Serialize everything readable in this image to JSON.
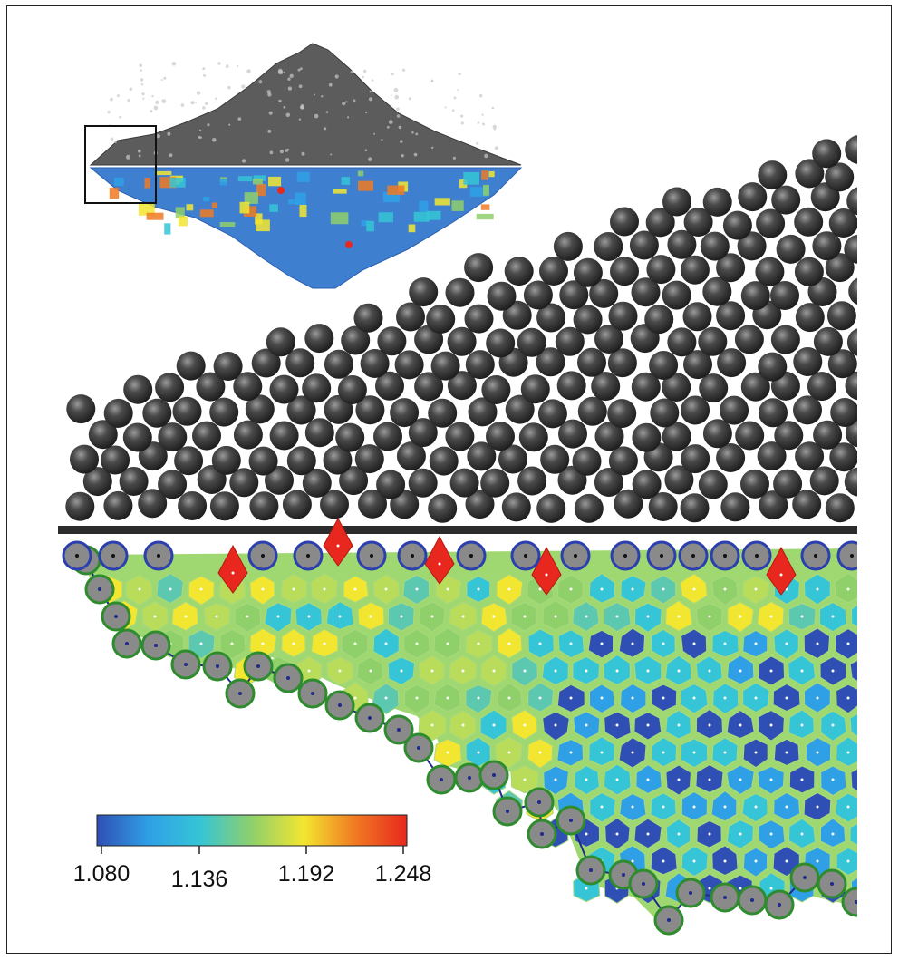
{
  "figure": {
    "panels": [
      "inset-2d-pile-overview",
      "experimental-bead-pile-photo",
      "voronoi-cell-map"
    ],
    "colors": {
      "bead": "#3a3a3a",
      "base_plate": "#2b2b2b",
      "boundary_bead_fill": "#8a8a8a",
      "bottom_ring": "#2e8b2e",
      "top_ring": "#2b3fae",
      "chain": "#1f2a8a",
      "peak_cell": "#e8281e"
    }
  },
  "colorbar": {
    "min": 1.08,
    "max": 1.248,
    "ticks": [
      "1.080",
      "1.136",
      "1.192",
      "1.248"
    ],
    "stops": [
      "#2f4fb5",
      "#2fa0e6",
      "#35c5d6",
      "#8fd06b",
      "#f2e630",
      "#f07a22",
      "#e8281e"
    ]
  }
}
